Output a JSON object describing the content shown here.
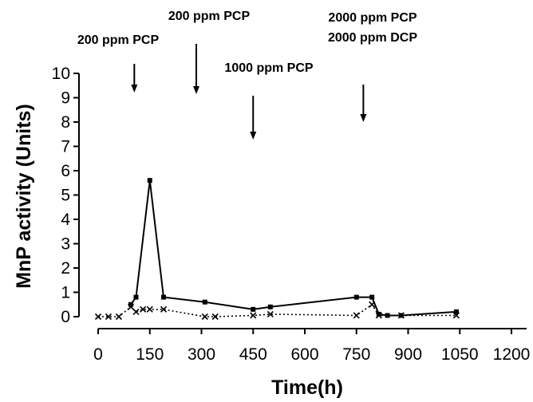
{
  "chart_data": {
    "type": "line",
    "title": "",
    "xlabel": "Time(h)",
    "ylabel": "MnP activity (Units)",
    "xlim": [
      0,
      1200
    ],
    "ylim": [
      0,
      10
    ],
    "x_ticks": [
      "0",
      "150",
      "300",
      "450",
      "600",
      "750",
      "900",
      "1050",
      "1200"
    ],
    "y_ticks": [
      "0",
      "1",
      "2",
      "3",
      "4",
      "5",
      "6",
      "7",
      "8",
      "9",
      "10"
    ],
    "grid": false,
    "series": [
      {
        "style": "solid",
        "marker": "square",
        "x": [
          95,
          110,
          150,
          190,
          310,
          450,
          500,
          750,
          795,
          815,
          840,
          880,
          1040
        ],
        "y": [
          0.5,
          0.8,
          5.6,
          0.8,
          0.6,
          0.3,
          0.4,
          0.8,
          0.8,
          0.1,
          0.05,
          0.05,
          0.2
        ]
      },
      {
        "style": "dotted",
        "marker": "x",
        "x": [
          0,
          30,
          60,
          95,
          110,
          130,
          150,
          190,
          310,
          340,
          450,
          500,
          750,
          795,
          815,
          880,
          1040
        ],
        "y": [
          0,
          0,
          0,
          0.4,
          0.2,
          0.3,
          0.3,
          0.3,
          0,
          0,
          0.05,
          0.1,
          0.05,
          0.5,
          0.05,
          0.05,
          0.05
        ]
      }
    ],
    "annotations": [
      {
        "lines": [
          "200 ppm PCP"
        ],
        "x": 105
      },
      {
        "lines": [
          "200 ppm PCP"
        ],
        "x": 285
      },
      {
        "lines": [
          "1000 ppm PCP"
        ],
        "x": 450
      },
      {
        "lines": [
          "2000 ppm PCP",
          "2000 ppm DCP"
        ],
        "x": 770
      }
    ]
  }
}
